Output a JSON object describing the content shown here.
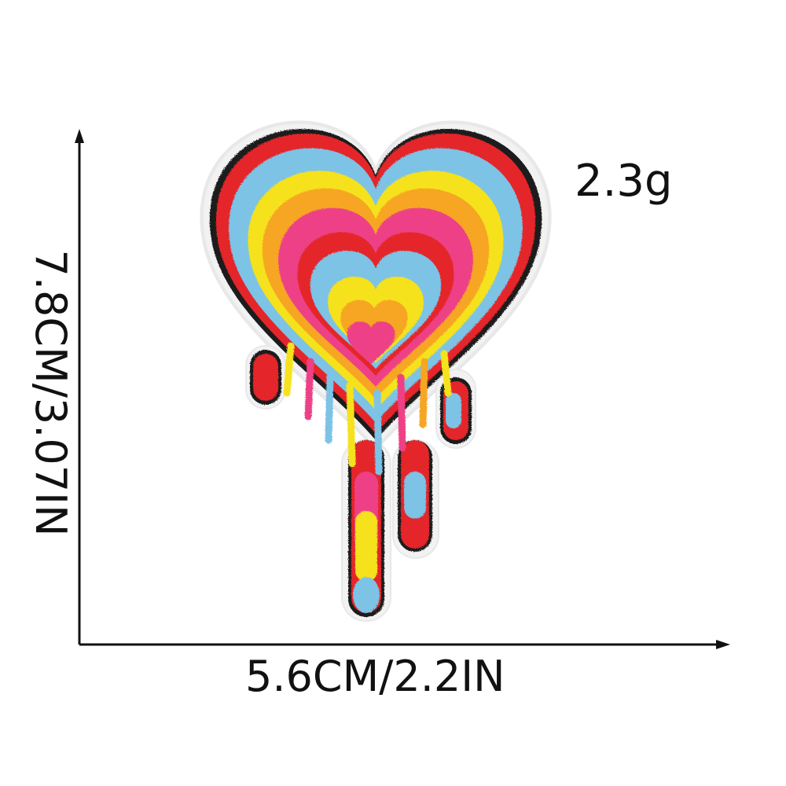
{
  "product": {
    "name_icon": "melting-rainbow-heart-patch-icon",
    "weight": "2.3g",
    "width": "5.6CM/2.2IN",
    "height": "7.8CM/3.07IN"
  },
  "colors": {
    "outline": "#1a1a1a",
    "red": "#e4262b",
    "blue": "#7cc3e6",
    "yellow": "#f5e21c",
    "orange": "#f6a623",
    "pink": "#ee3f86",
    "axis": "#111111"
  }
}
